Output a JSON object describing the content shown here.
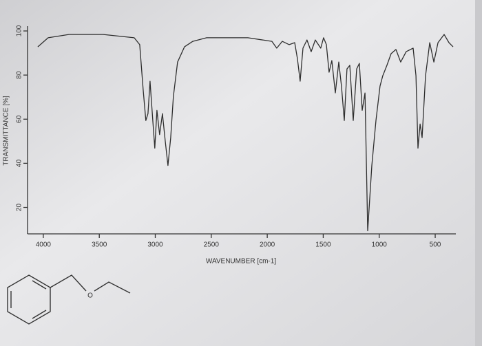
{
  "chart_data": {
    "type": "line",
    "xlabel": "WAVENUMBER [cm-1]",
    "ylabel": "TRANSMITTANCE [%]",
    "x": [
      4049,
      3957,
      3772,
      3465,
      3188,
      3139,
      3108,
      3084,
      3065,
      3047,
      3022,
      3004,
      2985,
      2961,
      2936,
      2911,
      2887,
      2862,
      2838,
      2801,
      2739,
      2665,
      2542,
      2173,
      1958,
      1915,
      1866,
      1804,
      1755,
      1731,
      1706,
      1681,
      1645,
      1608,
      1571,
      1522,
      1497,
      1472,
      1448,
      1423,
      1392,
      1361,
      1337,
      1312,
      1288,
      1263,
      1232,
      1201,
      1177,
      1152,
      1127,
      1103,
      1066,
      1029,
      993,
      968,
      931,
      894,
      851,
      808,
      759,
      697,
      672,
      654,
      635,
      617,
      586,
      549,
      512,
      475,
      420,
      377,
      340
    ],
    "series": [
      {
        "color": "#2e2e2e",
        "values": [
          92.8,
          96.9,
          98.4,
          98.4,
          96.9,
          93.8,
          73.4,
          59.4,
          62.5,
          77.2,
          59.4,
          46.9,
          64,
          53,
          62.5,
          50,
          39,
          51.6,
          70.3,
          85.9,
          92.8,
          95.3,
          96.9,
          96.9,
          95.3,
          92.2,
          95.3,
          93.8,
          94.7,
          87.5,
          77.2,
          92.2,
          95.9,
          90.6,
          95.9,
          92.2,
          96.9,
          93.8,
          81.3,
          86.6,
          71.9,
          85.9,
          75,
          59.4,
          82.8,
          84.4,
          59.4,
          82.8,
          85.3,
          64,
          71.9,
          9.4,
          39,
          59.4,
          75,
          79.7,
          84.4,
          89.7,
          91.6,
          85.9,
          90.6,
          92.2,
          79.7,
          46.9,
          57.8,
          51.6,
          79.7,
          94.7,
          85.9,
          94.7,
          98.4,
          94.7,
          92.8
        ]
      }
    ],
    "xlim": [
      4110,
      328
    ],
    "ylim": [
      8,
      100
    ],
    "xticks": [
      4000,
      3500,
      3000,
      2500,
      2000,
      1500,
      1000,
      500
    ],
    "yticks": [
      20,
      40,
      60,
      80,
      100
    ]
  },
  "structure": {
    "atom_label": "O"
  }
}
